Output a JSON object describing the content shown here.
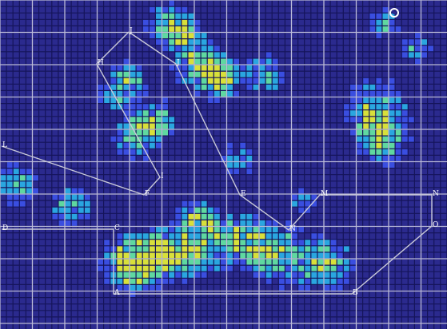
{
  "palette": {
    "background": "#2b2a8e",
    "fine_grid": "#15145a",
    "major_grid": "#d8d8f0",
    "route_line": "#c8c8d8",
    "heat_low": "#3a4ee0",
    "heat_mid": "#2aa6e0",
    "heat_high": "#5fd8a0",
    "heat_hot": "#d8e03a"
  },
  "icons": {
    "marker": "ring-marker-icon"
  },
  "waypoints": [
    {
      "id": "wp-a",
      "label": "J"
    },
    {
      "id": "wp-b",
      "label": "H"
    },
    {
      "id": "wp-c",
      "label": "J"
    },
    {
      "id": "wp-d",
      "label": "I"
    },
    {
      "id": "wp-e",
      "label": "F"
    },
    {
      "id": "wp-f",
      "label": "L"
    },
    {
      "id": "wp-g",
      "label": "E"
    },
    {
      "id": "wp-h",
      "label": "N"
    },
    {
      "id": "wp-i",
      "label": "M"
    },
    {
      "id": "wp-j",
      "label": "N"
    },
    {
      "id": "wp-k",
      "label": "O"
    },
    {
      "id": "wp-l",
      "label": "D"
    },
    {
      "id": "wp-m",
      "label": "C"
    },
    {
      "id": "wp-n",
      "label": "B"
    },
    {
      "id": "wp-o",
      "label": "A"
    }
  ]
}
